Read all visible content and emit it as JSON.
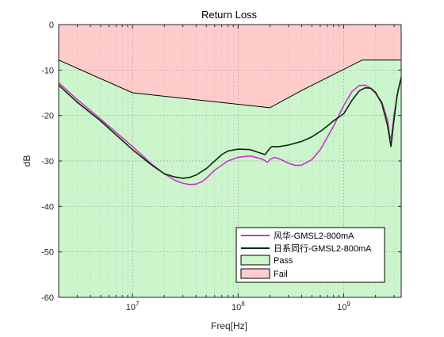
{
  "chart_data": {
    "type": "line",
    "title": "Return Loss",
    "xlabel": "Freq[Hz]",
    "ylabel": "dB",
    "xscale": "log",
    "xlim": [
      2000000,
      3500000000
    ],
    "ylim": [
      -60,
      0
    ],
    "yticks": [
      0,
      -10,
      -20,
      -30,
      -40,
      -50,
      -60
    ],
    "xticks": [
      {
        "base": "10",
        "exp": "7",
        "value": 10000000
      },
      {
        "base": "10",
        "exp": "8",
        "value": 100000000
      },
      {
        "base": "10",
        "exp": "9",
        "value": 1000000000
      }
    ],
    "grid": true,
    "legend_position": "bottom-right",
    "limit_mask": {
      "x": [
        2000000,
        10000000,
        200000000,
        400000000,
        1500000000,
        3500000000
      ],
      "y": [
        -7.8,
        -15,
        -18.3,
        -14.5,
        -7.8,
        -7.8
      ]
    },
    "regions": [
      {
        "name": "Pass",
        "color": "#ccf5cc"
      },
      {
        "name": "Fail",
        "color": "#ffcccc"
      }
    ],
    "series": [
      {
        "name": "风华-GMSL2-800mA",
        "color": "#cc33cc",
        "x": [
          2000000,
          3000000,
          5000000,
          10000000,
          15000000,
          20000000,
          25000000,
          30000000,
          35000000,
          40000000,
          45000000,
          50000000,
          60000000,
          80000000,
          100000000,
          130000000,
          170000000,
          190000000,
          200000000,
          220000000,
          250000000,
          300000000,
          350000000,
          400000000,
          500000000,
          600000000,
          800000000,
          1000000000,
          1200000000,
          1400000000,
          1600000000,
          1800000000,
          2000000000,
          2300000000,
          2600000000,
          2750000000,
          2850000000,
          3000000000,
          3300000000,
          3500000000
        ],
        "y": [
          -12.8,
          -16.5,
          -20.8,
          -26.8,
          -30.6,
          -32.8,
          -34.2,
          -34.9,
          -35.2,
          -35.1,
          -34.6,
          -33.8,
          -32,
          -30,
          -29.2,
          -28.9,
          -29.6,
          -30.3,
          -29.7,
          -29.2,
          -29.6,
          -30.5,
          -31,
          -30.9,
          -29.7,
          -27.5,
          -22.4,
          -17.8,
          -14.7,
          -13.4,
          -13.3,
          -14,
          -15.1,
          -17.1,
          -21,
          -25.2,
          -24.2,
          -19.8,
          -14,
          -12
        ]
      },
      {
        "name": "日系同行-GMSL2-800mA",
        "color": "#0a2a0a",
        "x": [
          2000000,
          3000000,
          5000000,
          10000000,
          15000000,
          20000000,
          25000000,
          30000000,
          35000000,
          40000000,
          50000000,
          60000000,
          70000000,
          80000000,
          100000000,
          130000000,
          160000000,
          180000000,
          200000000,
          210000000,
          220000000,
          250000000,
          300000000,
          400000000,
          500000000,
          600000000,
          700000000,
          800000000,
          1000000000,
          1200000000,
          1400000000,
          1600000000,
          1800000000,
          2000000000,
          2300000000,
          2600000000,
          2800000000,
          2950000000,
          3200000000,
          3500000000
        ],
        "y": [
          -13.3,
          -17.1,
          -21.2,
          -27.5,
          -30.8,
          -32.8,
          -33.5,
          -33.8,
          -33.6,
          -33.1,
          -31.7,
          -30,
          -28.6,
          -27.8,
          -27.4,
          -27.5,
          -28.2,
          -28.6,
          -27.2,
          -26.8,
          -26.9,
          -26.8,
          -26.5,
          -25.7,
          -24.7,
          -23.5,
          -22.3,
          -21.2,
          -19.6,
          -16.6,
          -14.6,
          -13.9,
          -14,
          -14.9,
          -17.4,
          -22.2,
          -26.8,
          -22.2,
          -15.6,
          -11.6
        ]
      }
    ]
  }
}
